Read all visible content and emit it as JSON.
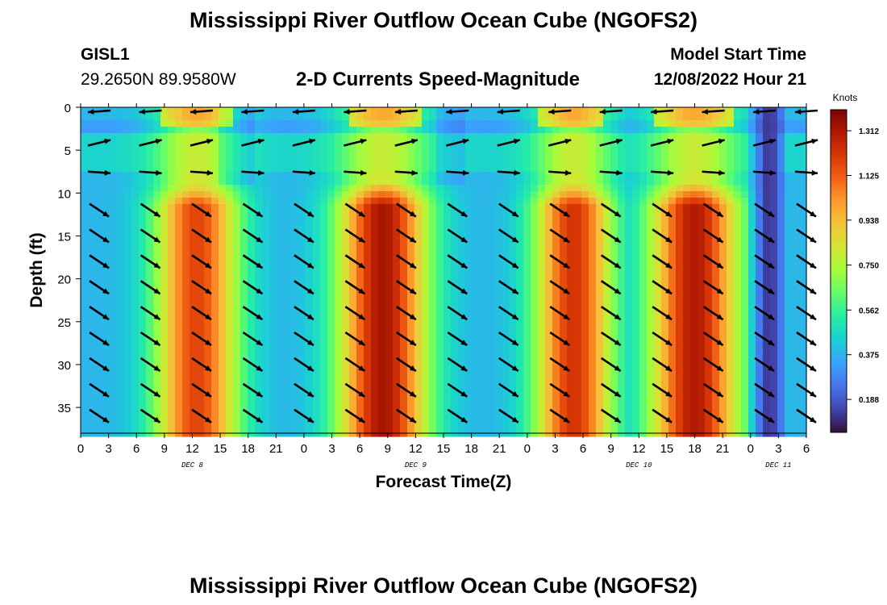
{
  "page": {
    "title_top": "Mississippi River Outflow Ocean Cube (NGOFS2)",
    "title_bottom": "Mississippi River Outflow Ocean Cube (NGOFS2)",
    "station_name": "GISL1",
    "station_coords": "29.2650N  89.9580W",
    "subtitle": "2-D Currents Speed-Magnitude",
    "model_start_label": "Model Start Time",
    "model_start_value": "12/08/2022 Hour 21"
  },
  "chart_data": {
    "type": "heatmap",
    "title": "2-D Currents Speed-Magnitude",
    "xlabel": "Forecast Time(Z)",
    "ylabel": "Depth (ft)",
    "x_start_hour": 0,
    "x_end_hour": 78,
    "x_ticks": [
      {
        "hour": 0,
        "label": "0"
      },
      {
        "hour": 3,
        "label": "3"
      },
      {
        "hour": 6,
        "label": "6"
      },
      {
        "hour": 9,
        "label": "9"
      },
      {
        "hour": 12,
        "label": "12"
      },
      {
        "hour": 15,
        "label": "15"
      },
      {
        "hour": 18,
        "label": "18"
      },
      {
        "hour": 21,
        "label": "21"
      },
      {
        "hour": 24,
        "label": "0"
      },
      {
        "hour": 27,
        "label": "3"
      },
      {
        "hour": 30,
        "label": "6"
      },
      {
        "hour": 33,
        "label": "9"
      },
      {
        "hour": 36,
        "label": "12"
      },
      {
        "hour": 39,
        "label": "15"
      },
      {
        "hour": 42,
        "label": "18"
      },
      {
        "hour": 45,
        "label": "21"
      },
      {
        "hour": 48,
        "label": "0"
      },
      {
        "hour": 51,
        "label": "3"
      },
      {
        "hour": 54,
        "label": "6"
      },
      {
        "hour": 57,
        "label": "9"
      },
      {
        "hour": 60,
        "label": "12"
      },
      {
        "hour": 63,
        "label": "15"
      },
      {
        "hour": 66,
        "label": "18"
      },
      {
        "hour": 69,
        "label": "21"
      },
      {
        "hour": 72,
        "label": "0"
      },
      {
        "hour": 75,
        "label": "3"
      },
      {
        "hour": 78,
        "label": "6"
      }
    ],
    "day_labels": [
      {
        "hour": 12,
        "label": "DEC 8"
      },
      {
        "hour": 36,
        "label": "DEC 9"
      },
      {
        "hour": 60,
        "label": "DEC 10"
      },
      {
        "hour": 75,
        "label": "DEC 11"
      }
    ],
    "y_ticks": [
      0,
      5,
      10,
      15,
      20,
      25,
      30,
      35
    ],
    "ylim": [
      0,
      38
    ],
    "y_inverted": true,
    "colorbar": {
      "title": "Knots",
      "min": 0.05,
      "max": 1.4,
      "ticks": [
        1.312,
        1.125,
        0.938,
        0.75,
        0.562,
        0.375,
        0.188
      ],
      "tick_labels": [
        "1.312",
        "1.125",
        "0.938",
        "0.750",
        "0.562",
        "0.375",
        "0.188"
      ],
      "colors": [
        "#30123b",
        "#4145ab",
        "#4675ed",
        "#39a2fc",
        "#1bcfd4",
        "#24eca6",
        "#61fc6c",
        "#a4fc3b",
        "#d1e834",
        "#f3c63a",
        "#fe9b2d",
        "#f36315",
        "#d93806",
        "#b11901",
        "#7a0402"
      ]
    },
    "speed_peaks": [
      {
        "hour": 12.5,
        "speed": 1.18,
        "width": 4.5
      },
      {
        "hour": 32.5,
        "speed": 1.32,
        "width": 4.8
      },
      {
        "hour": 53.0,
        "speed": 1.22,
        "width": 4.2
      },
      {
        "hour": 66.0,
        "speed": 1.3,
        "width": 4.8
      }
    ],
    "speed_baseline": 0.38,
    "low_speed_zone": {
      "hour_from": 72.0,
      "hour_to": 76.0,
      "speed": 0.12
    },
    "surface_layer_depths_ft": [
      0,
      4,
      7.5
    ],
    "vector_hours": [
      2,
      7.5,
      13,
      18.5,
      24,
      29.5,
      35,
      40.5,
      46,
      51.5,
      57,
      62.5,
      68,
      73.5,
      78
    ],
    "vector_depths_ft": [
      12,
      15,
      18,
      21,
      24,
      27,
      30,
      33,
      36
    ],
    "vector_direction": "toward lower-right (southeast) at depth; toward west/left near surface"
  }
}
